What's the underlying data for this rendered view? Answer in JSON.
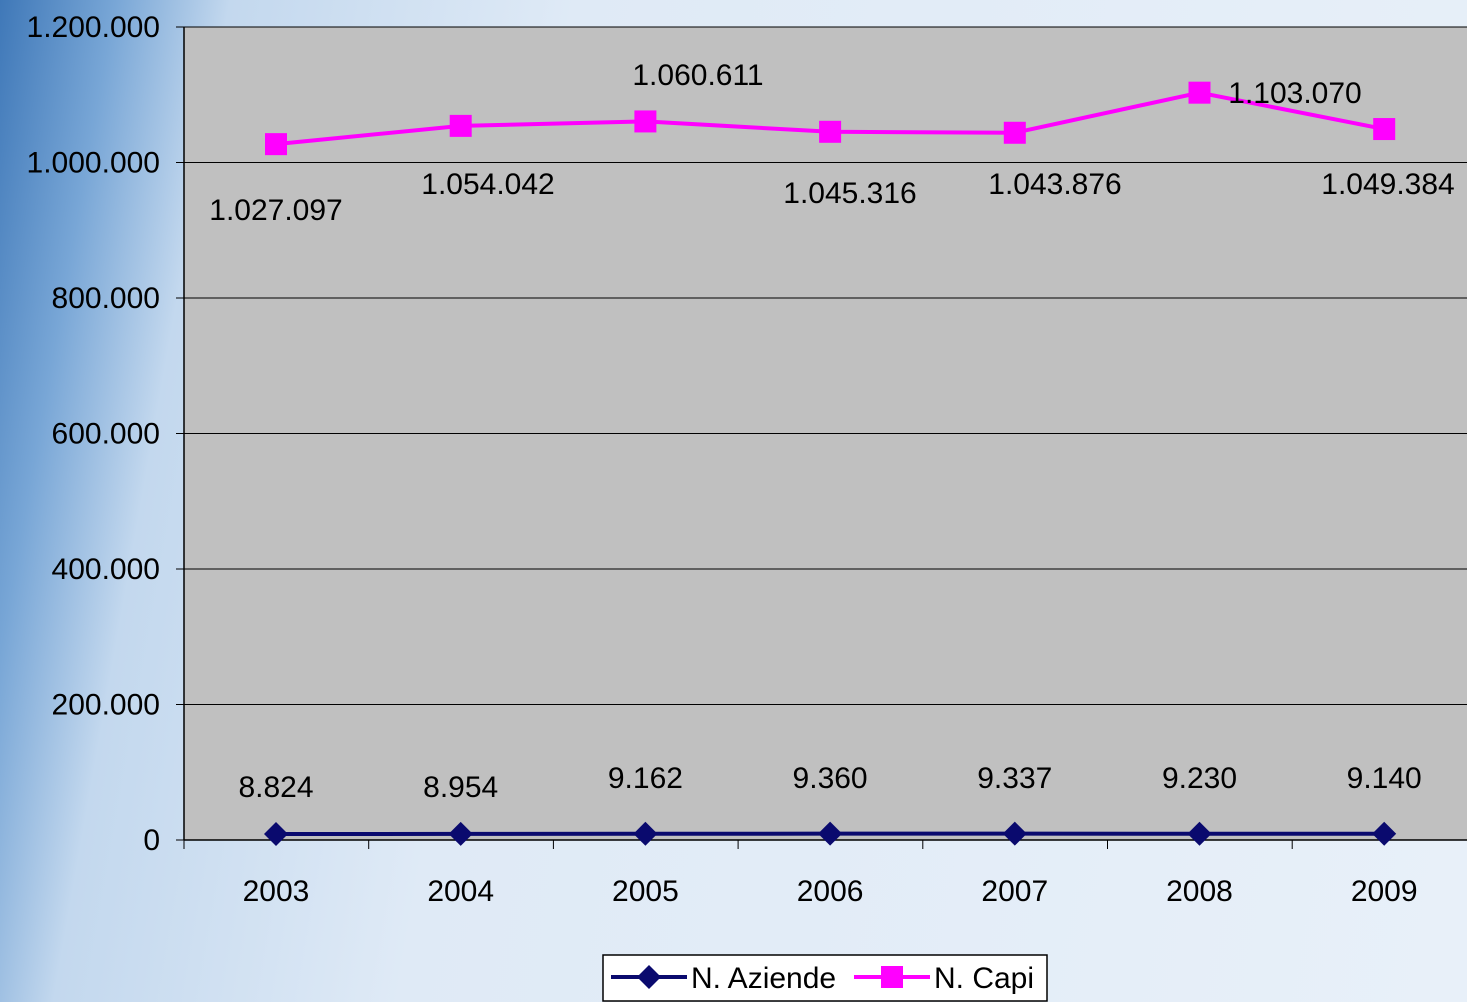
{
  "chart_data": {
    "type": "line",
    "categories": [
      "2003",
      "2004",
      "2005",
      "2006",
      "2007",
      "2008",
      "2009"
    ],
    "ylim": [
      0,
      1200000
    ],
    "yticks": [
      0,
      200000,
      400000,
      600000,
      800000,
      1000000,
      1200000
    ],
    "ytick_labels": [
      "0",
      "200.000",
      "400.000",
      "600.000",
      "800.000",
      "1.000.000",
      "1.200.000"
    ],
    "grid": true,
    "legend_position": "bottom-center",
    "series": [
      {
        "name": "N. Aziende",
        "color": "#0a0a6e",
        "marker": "diamond",
        "values": [
          8824,
          8954,
          9162,
          9360,
          9337,
          9230,
          9140
        ],
        "labels": [
          "8.824",
          "8.954",
          "9.162",
          "9.360",
          "9.337",
          "9.230",
          "9.140"
        ]
      },
      {
        "name": "N. Capi",
        "color": "#ff00ff",
        "marker": "square",
        "values": [
          1027097,
          1054042,
          1060611,
          1045316,
          1043876,
          1103070,
          1049384
        ],
        "labels": [
          "1.027.097",
          "1.054.042",
          "1.060.611",
          "1.045.316",
          "1.043.876",
          "1.103.070",
          "1.049.384"
        ]
      }
    ]
  }
}
